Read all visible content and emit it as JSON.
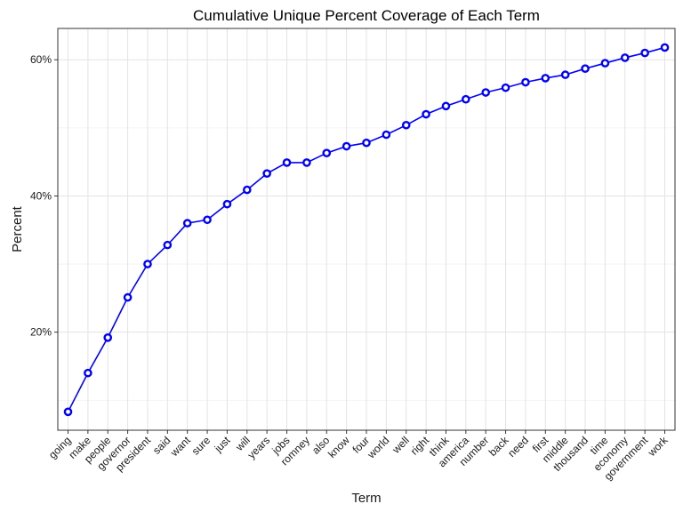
{
  "chart_data": {
    "type": "line",
    "title": "Cumulative Unique Percent Coverage of Each Term",
    "xlabel": "Term",
    "ylabel": "Percent",
    "categories": [
      "going",
      "make",
      "people",
      "governor",
      "president",
      "said",
      "want",
      "sure",
      "just",
      "will",
      "years",
      "jobs",
      "romney",
      "also",
      "know",
      "four",
      "world",
      "well",
      "right",
      "think",
      "america",
      "number",
      "back",
      "need",
      "first",
      "middle",
      "thousand",
      "time",
      "economy",
      "government",
      "work"
    ],
    "series": [
      {
        "values": [
          8.3,
          14.0,
          19.2,
          25.1,
          30.0,
          32.8,
          36.0,
          36.5,
          38.8,
          40.9,
          43.3,
          44.9,
          44.9,
          46.3,
          47.3,
          47.8,
          49.0,
          50.4,
          52.0,
          53.2,
          54.2,
          55.2,
          55.9,
          56.7,
          57.3,
          57.8,
          58.7,
          59.5,
          60.3,
          61.0,
          61.8
        ],
        "color": "#0000ff"
      }
    ],
    "yticks": [
      20,
      40,
      60
    ],
    "ytick_labels": [
      "20%",
      "40%",
      "60%"
    ],
    "ylim": [
      5.6,
      64.6
    ],
    "grid": true,
    "legend": "none"
  }
}
